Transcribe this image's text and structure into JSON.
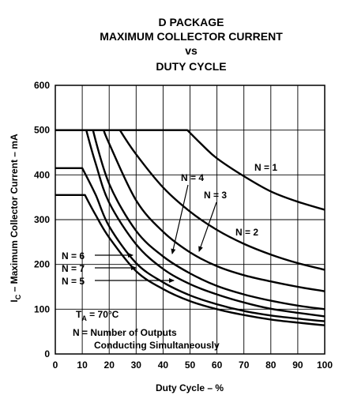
{
  "chart_data": {
    "type": "line",
    "title_lines": [
      "D PACKAGE",
      "MAXIMUM COLLECTOR CURRENT",
      "vs",
      "DUTY CYCLE"
    ],
    "xlabel": "Duty Cycle – %",
    "ylabel_prefix": "I",
    "ylabel_sub": "C",
    "ylabel_rest": " – Maximum Collector Current – mA",
    "xlim": [
      0,
      100
    ],
    "ylim": [
      0,
      600
    ],
    "xticks": [
      0,
      10,
      20,
      30,
      40,
      50,
      60,
      70,
      80,
      90,
      100
    ],
    "yticks": [
      0,
      100,
      200,
      300,
      400,
      500,
      600
    ],
    "grid": true,
    "series": [
      {
        "name": "N = 1",
        "x": [
          0,
          49,
          55,
          60,
          70,
          80,
          90,
          100
        ],
        "y": [
          500,
          500,
          464,
          437,
          397,
          363,
          340,
          322
        ]
      },
      {
        "name": "N = 2",
        "x": [
          0,
          24,
          30,
          40,
          50,
          60,
          70,
          80,
          90,
          100
        ],
        "y": [
          500,
          500,
          446,
          372,
          318,
          277,
          246,
          222,
          203,
          188
        ]
      },
      {
        "name": "N = 3",
        "x": [
          0,
          18,
          20,
          30,
          40,
          50,
          60,
          70,
          80,
          90,
          100
        ],
        "y": [
          500,
          500,
          470,
          343,
          273,
          227,
          196,
          176,
          162,
          150,
          140
        ]
      },
      {
        "name": "N = 4",
        "x": [
          0,
          14,
          20,
          30,
          40,
          50,
          60,
          70,
          80,
          90,
          100
        ],
        "y": [
          500,
          500,
          380,
          275,
          218,
          180,
          152,
          133,
          119,
          108,
          100
        ]
      },
      {
        "name": "N = 5",
        "x": [
          0,
          11.5,
          15,
          20,
          30,
          40,
          50,
          60,
          70,
          80,
          90,
          100
        ],
        "y": [
          500,
          500,
          425,
          338,
          245,
          190,
          156,
          133,
          115,
          101,
          92,
          84
        ]
      },
      {
        "name": "N = 6",
        "x": [
          0,
          10,
          15,
          20,
          30,
          40,
          50,
          60,
          70,
          80,
          90,
          100
        ],
        "y": [
          415,
          415,
          355,
          285,
          203,
          160,
          131,
          111,
          96,
          86,
          79,
          73
        ]
      },
      {
        "name": "N = 7",
        "x": [
          0,
          11,
          15,
          20,
          30,
          40,
          50,
          60,
          70,
          80,
          90,
          100
        ],
        "y": [
          355,
          355,
          310,
          260,
          185,
          145,
          118,
          100,
          87,
          77,
          70,
          64
        ]
      }
    ],
    "annotations": {
      "n1": "N = 1",
      "n2": "N = 2",
      "n3": "N = 3",
      "n4": "N = 4",
      "n5": "N = 5",
      "n6": "N = 6",
      "n7": "N = 7",
      "ta_prefix": "T",
      "ta_sub": "A",
      "ta_rest": " = 70°C",
      "note_line1": "N = Number of Outputs",
      "note_line2": "Conducting Simultaneously"
    }
  }
}
